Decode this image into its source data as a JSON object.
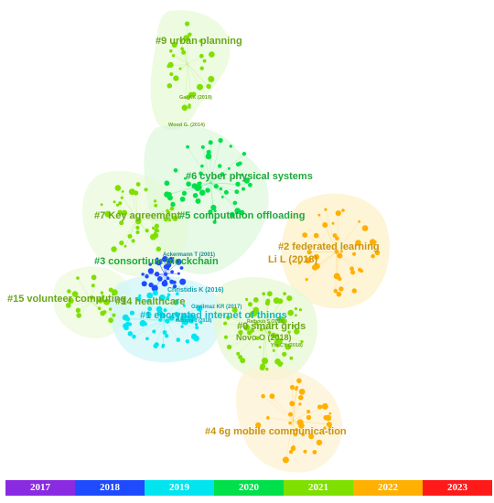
{
  "colors": {
    "2017": "#8a2be2",
    "2018": "#1f4bff",
    "2019": "#00e5f0",
    "2020": "#00e04a",
    "2021": "#7fe000",
    "2022": "#ffb000",
    "2023": "#ff1a1a"
  },
  "clusters": [
    {
      "label": "#9 urban planning",
      "year": "2021"
    },
    {
      "label": "#6 cyber physical systems",
      "year": "2020"
    },
    {
      "label": "#7 Key agreement",
      "year": "2021"
    },
    {
      "label": "#5 computation offloading",
      "year": "2020"
    },
    {
      "label": "#2 federated learning",
      "year": "2022"
    },
    {
      "label": "#3 consortium blockchain",
      "year": "2020"
    },
    {
      "label": "#15 volunteer computing",
      "year": "2021"
    },
    {
      "label": "#14 healthcare",
      "year": "2021"
    },
    {
      "label": "#1 encrypted internet of things",
      "year": "2019"
    },
    {
      "label": "#0 smart grids",
      "year": "2021"
    },
    {
      "label": "#4 6g mobile communica-tion",
      "year": "2022"
    }
  ],
  "authors": [
    {
      "label": "Gai KK (2019)"
    },
    {
      "label": "Wood G. (2014)"
    },
    {
      "label": "Ackermann T (2001)"
    },
    {
      "label": "Li L (2018)"
    },
    {
      "label": "Christidis K (2016)"
    },
    {
      "label": "Ozyilmaz KR (2017)"
    },
    {
      "label": "Mazzoni J (2018)"
    },
    {
      "label": "Novo O (2018)"
    },
    {
      "label": "Ratboub S (2019)"
    },
    {
      "label": "Yin CY (2018)"
    }
  ],
  "timeline": [
    "2017",
    "2018",
    "2019",
    "2020",
    "2021",
    "2022",
    "2023"
  ]
}
